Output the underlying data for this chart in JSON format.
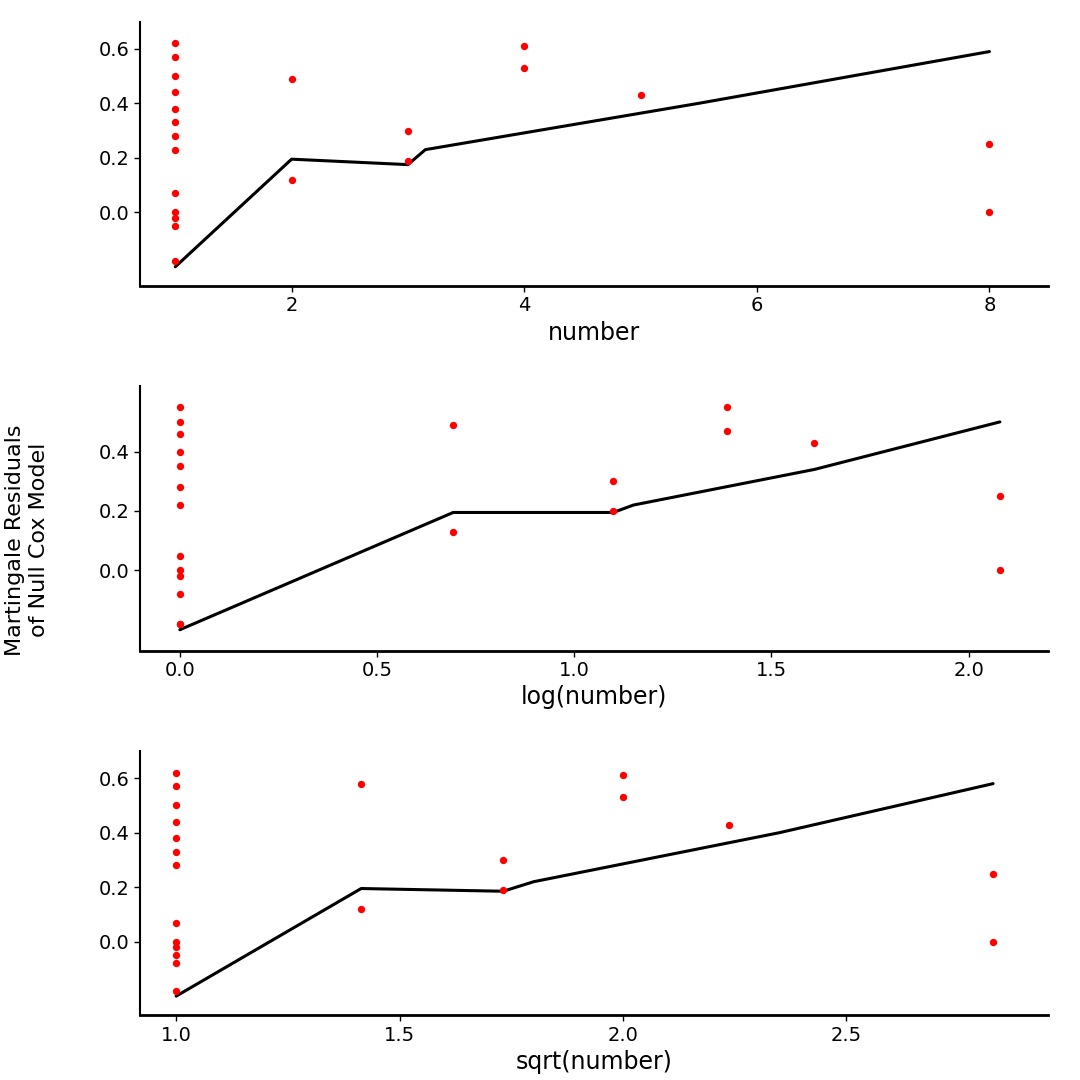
{
  "background_color": "#ffffff",
  "dot_color": "#ff0000",
  "line_color": "#000000",
  "ylabel": "Martingale Residuals\nof Null Cox Model",
  "subplot1": {
    "xlabel": "number",
    "scatter_x": [
      1,
      1,
      1,
      1,
      1,
      1,
      1,
      1,
      1,
      1,
      1,
      1,
      1,
      2,
      2,
      3,
      3,
      4,
      4,
      5,
      8,
      8
    ],
    "scatter_y": [
      0.62,
      0.57,
      0.5,
      0.44,
      0.38,
      0.33,
      0.28,
      0.23,
      0.07,
      0.0,
      -0.02,
      -0.05,
      -0.18,
      0.49,
      0.12,
      0.3,
      0.19,
      0.61,
      0.53,
      0.43,
      0.25,
      0.0
    ],
    "line_x": [
      1,
      2,
      3,
      3.15,
      5.5,
      8
    ],
    "line_y": [
      -0.2,
      0.195,
      0.175,
      0.23,
      0.4,
      0.59
    ],
    "xlim": [
      0.7,
      8.5
    ],
    "ylim": [
      -0.27,
      0.7
    ],
    "xticks": [
      2,
      4,
      6,
      8
    ],
    "yticks": [
      0.0,
      0.2,
      0.4,
      0.6
    ]
  },
  "subplot2": {
    "xlabel": "log(number)",
    "scatter_x": [
      0.0,
      0.0,
      0.0,
      0.0,
      0.0,
      0.0,
      0.0,
      0.0,
      0.0,
      0.0,
      0.0,
      0.0,
      0.0,
      0.693,
      0.693,
      1.099,
      1.099,
      1.386,
      1.386,
      1.609,
      2.079,
      2.079
    ],
    "scatter_y": [
      0.55,
      0.5,
      0.46,
      0.4,
      0.35,
      0.28,
      0.22,
      0.05,
      0.0,
      -0.02,
      -0.08,
      -0.18,
      -0.18,
      0.49,
      0.13,
      0.3,
      0.2,
      0.55,
      0.47,
      0.43,
      0.25,
      0.0
    ],
    "line_x": [
      0.0,
      0.693,
      1.099,
      1.15,
      1.609,
      2.079
    ],
    "line_y": [
      -0.2,
      0.195,
      0.195,
      0.22,
      0.34,
      0.5
    ],
    "xlim": [
      -0.1,
      2.2
    ],
    "ylim": [
      -0.27,
      0.62
    ],
    "xticks": [
      0.0,
      0.5,
      1.0,
      1.5,
      2.0
    ],
    "yticks": [
      0.0,
      0.2,
      0.4
    ]
  },
  "subplot3": {
    "xlabel": "sqrt(number)",
    "scatter_x": [
      1.0,
      1.0,
      1.0,
      1.0,
      1.0,
      1.0,
      1.0,
      1.0,
      1.0,
      1.0,
      1.0,
      1.0,
      1.0,
      1.414,
      1.414,
      1.732,
      1.732,
      2.0,
      2.0,
      2.236,
      2.828,
      2.828
    ],
    "scatter_y": [
      0.62,
      0.57,
      0.5,
      0.44,
      0.38,
      0.33,
      0.28,
      0.07,
      0.0,
      -0.02,
      -0.05,
      -0.08,
      -0.18,
      0.58,
      0.12,
      0.3,
      0.19,
      0.61,
      0.53,
      0.43,
      0.25,
      0.0
    ],
    "line_x": [
      1.0,
      1.414,
      1.732,
      1.8,
      2.35,
      2.828
    ],
    "line_y": [
      -0.2,
      0.195,
      0.185,
      0.22,
      0.4,
      0.58
    ],
    "xlim": [
      0.92,
      2.95
    ],
    "ylim": [
      -0.27,
      0.7
    ],
    "xticks": [
      1.0,
      1.5,
      2.0,
      2.5
    ],
    "yticks": [
      0.0,
      0.2,
      0.4,
      0.6
    ]
  },
  "dot_size": 28,
  "line_width": 2.2,
  "font_size_label": 17,
  "font_size_tick": 14,
  "font_size_ylabel": 16
}
